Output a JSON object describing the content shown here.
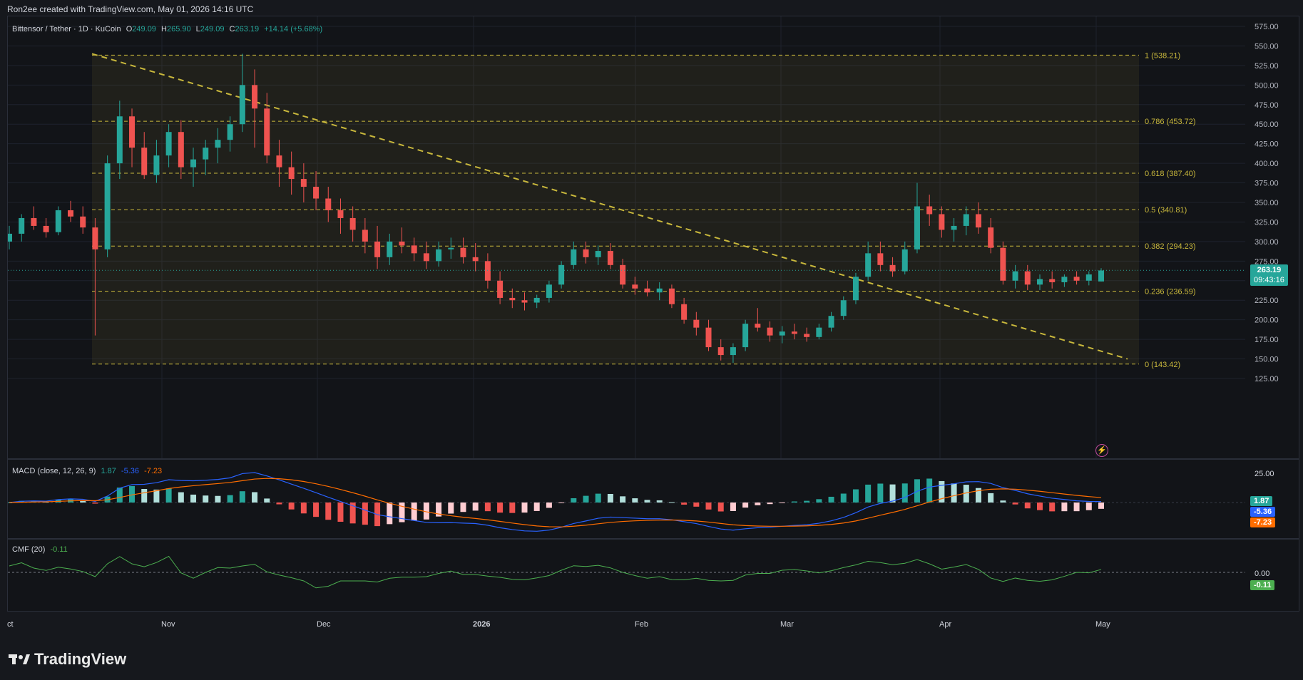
{
  "header": {
    "created_text": "Ron2ee created with TradingView.com, May 01, 2026 14:16 UTC"
  },
  "symbol_legend": {
    "name": "Bittensor / Tether · 1D · KuCoin",
    "o_label": "O",
    "o_value": "249.09",
    "h_label": "H",
    "h_value": "265.90",
    "l_label": "L",
    "l_value": "249.09",
    "c_label": "C",
    "c_value": "263.19",
    "change": "+14.14 (+5.68%)"
  },
  "price_axis": {
    "ticks": [
      "575.00",
      "550.00",
      "525.00",
      "500.00",
      "475.00",
      "450.00",
      "425.00",
      "400.00",
      "375.00",
      "350.00",
      "325.00",
      "300.00",
      "275.00",
      "250.00",
      "225.00",
      "200.00",
      "175.00",
      "150.00",
      "125.00"
    ]
  },
  "last_price": {
    "value": "263.19",
    "countdown": "09:43:16"
  },
  "fib_levels": [
    {
      "label": "1 (538.21)",
      "price": 538.21
    },
    {
      "label": "0.786 (453.72)",
      "price": 453.72
    },
    {
      "label": "0.618 (387.40)",
      "price": 387.4
    },
    {
      "label": "0.5 (340.81)",
      "price": 340.81
    },
    {
      "label": "0.382 (294.23)",
      "price": 294.23
    },
    {
      "label": "0.236 (236.59)",
      "price": 236.59
    },
    {
      "label": "0 (143.42)",
      "price": 143.42
    }
  ],
  "macd": {
    "label": "MACD (close, 12, 26, 9)",
    "v1": "1.87",
    "v2": "-5.36",
    "v3": "-7.23",
    "axis_tick": "25.00",
    "badge1": "1.87",
    "badge2": "-5.36",
    "badge3": "-7.23"
  },
  "cmf": {
    "label": "CMF (20)",
    "value": "-0.11",
    "axis_tick": "0.00",
    "badge": "-0.11"
  },
  "time_axis": {
    "labels": [
      "ct",
      "Nov",
      "Dec",
      "2026",
      "Feb",
      "Mar",
      "Apr",
      "May"
    ]
  },
  "brand": {
    "logo_text": "TradingView"
  },
  "colors": {
    "up": "#26a69a",
    "down": "#ef5350",
    "fib": "#c9b83c",
    "macd_line": "#2962ff",
    "signal_line": "#ff6d00",
    "cmf_line": "#4caf50"
  },
  "chart_data": {
    "type": "candlestick",
    "title": "Bittensor / Tether · 1D · KuCoin",
    "ylim": [
      125,
      575
    ],
    "candles_ohlc_approx": [
      [
        300,
        320,
        290,
        310
      ],
      [
        310,
        335,
        300,
        330
      ],
      [
        330,
        345,
        315,
        320
      ],
      [
        320,
        330,
        305,
        312
      ],
      [
        312,
        345,
        308,
        340
      ],
      [
        340,
        352,
        325,
        332
      ],
      [
        332,
        345,
        310,
        318
      ],
      [
        318,
        330,
        180,
        290
      ],
      [
        290,
        410,
        280,
        400
      ],
      [
        400,
        480,
        380,
        460
      ],
      [
        460,
        470,
        395,
        420
      ],
      [
        420,
        440,
        380,
        385
      ],
      [
        385,
        430,
        375,
        410
      ],
      [
        410,
        450,
        395,
        440
      ],
      [
        440,
        455,
        380,
        395
      ],
      [
        395,
        420,
        370,
        405
      ],
      [
        405,
        430,
        385,
        420
      ],
      [
        420,
        445,
        400,
        430
      ],
      [
        430,
        460,
        415,
        450
      ],
      [
        450,
        540,
        440,
        500
      ],
      [
        500,
        520,
        420,
        470
      ],
      [
        470,
        490,
        400,
        410
      ],
      [
        410,
        430,
        370,
        395
      ],
      [
        395,
        415,
        360,
        380
      ],
      [
        380,
        400,
        350,
        370
      ],
      [
        370,
        390,
        340,
        355
      ],
      [
        355,
        370,
        325,
        340
      ],
      [
        340,
        355,
        310,
        330
      ],
      [
        330,
        345,
        300,
        315
      ],
      [
        315,
        330,
        285,
        300
      ],
      [
        300,
        320,
        265,
        280
      ],
      [
        280,
        310,
        270,
        300
      ],
      [
        300,
        318,
        285,
        295
      ],
      [
        295,
        305,
        275,
        285
      ],
      [
        285,
        300,
        265,
        275
      ],
      [
        275,
        300,
        268,
        290
      ],
      [
        290,
        305,
        278,
        292
      ],
      [
        292,
        305,
        272,
        280
      ],
      [
        280,
        298,
        262,
        275
      ],
      [
        275,
        285,
        240,
        250
      ],
      [
        250,
        262,
        220,
        228
      ],
      [
        228,
        240,
        215,
        225
      ],
      [
        225,
        235,
        212,
        222
      ],
      [
        222,
        232,
        215,
        228
      ],
      [
        228,
        250,
        222,
        245
      ],
      [
        245,
        275,
        240,
        270
      ],
      [
        270,
        300,
        265,
        290
      ],
      [
        290,
        300,
        272,
        280
      ],
      [
        280,
        295,
        270,
        288
      ],
      [
        288,
        298,
        265,
        270
      ],
      [
        270,
        278,
        240,
        245
      ],
      [
        245,
        255,
        232,
        240
      ],
      [
        240,
        250,
        230,
        235
      ],
      [
        235,
        248,
        225,
        240
      ],
      [
        240,
        245,
        215,
        220
      ],
      [
        220,
        228,
        195,
        200
      ],
      [
        200,
        210,
        180,
        190
      ],
      [
        190,
        200,
        160,
        165
      ],
      [
        165,
        175,
        148,
        155
      ],
      [
        155,
        170,
        145,
        165
      ],
      [
        165,
        200,
        160,
        195
      ],
      [
        195,
        215,
        185,
        190
      ],
      [
        190,
        198,
        172,
        180
      ],
      [
        180,
        192,
        170,
        185
      ],
      [
        185,
        195,
        175,
        182
      ],
      [
        182,
        190,
        172,
        178
      ],
      [
        178,
        195,
        175,
        190
      ],
      [
        190,
        210,
        185,
        205
      ],
      [
        205,
        230,
        200,
        225
      ],
      [
        225,
        260,
        220,
        255
      ],
      [
        255,
        300,
        250,
        285
      ],
      [
        285,
        300,
        262,
        270
      ],
      [
        270,
        280,
        255,
        262
      ],
      [
        262,
        300,
        258,
        290
      ],
      [
        290,
        375,
        285,
        345
      ],
      [
        345,
        360,
        320,
        335
      ],
      [
        335,
        345,
        305,
        315
      ],
      [
        315,
        330,
        300,
        320
      ],
      [
        320,
        345,
        308,
        335
      ],
      [
        335,
        350,
        310,
        318
      ],
      [
        318,
        330,
        285,
        292
      ],
      [
        292,
        300,
        245,
        250
      ],
      [
        250,
        270,
        240,
        262
      ],
      [
        262,
        270,
        238,
        245
      ],
      [
        245,
        258,
        238,
        252
      ],
      [
        252,
        262,
        240,
        248
      ],
      [
        248,
        258,
        242,
        255
      ],
      [
        255,
        262,
        245,
        250
      ],
      [
        250,
        262,
        244,
        258
      ],
      [
        249,
        266,
        249,
        263
      ]
    ]
  }
}
